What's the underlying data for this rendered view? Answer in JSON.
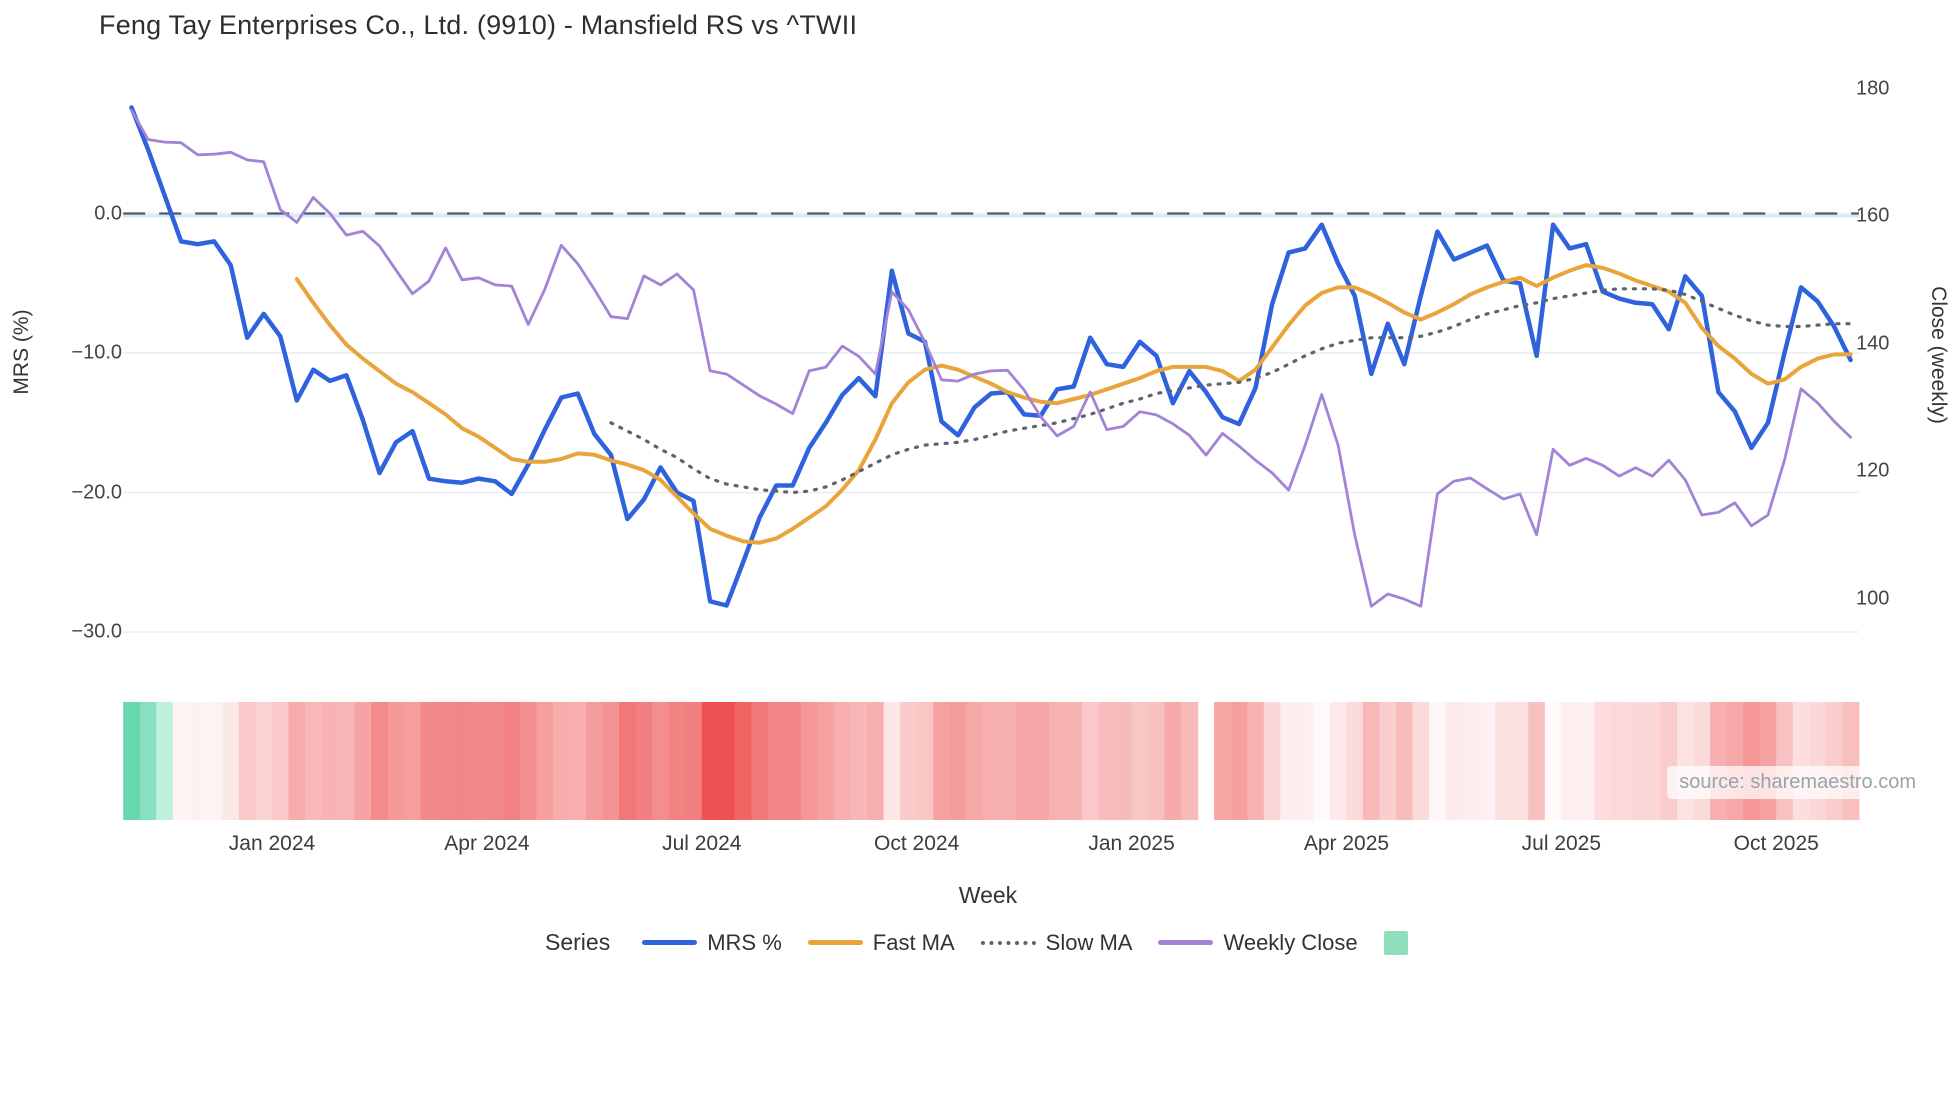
{
  "title": "Feng Tay Enterprises Co., Ltd. (9910) - Mansfield RS vs ^TWII",
  "source_note": "source: sharemaestro.com",
  "axes": {
    "left": {
      "title": "MRS (%)",
      "ticks": [
        {
          "label": "0.0",
          "value": 0
        },
        {
          "label": "−10.0",
          "value": -10
        },
        {
          "label": "−20.0",
          "value": -20
        },
        {
          "label": "−30.0",
          "value": -30
        }
      ]
    },
    "right": {
      "title": "Close (weekly)",
      "ticks": [
        {
          "label": "180",
          "value": 180
        },
        {
          "label": "160",
          "value": 160
        },
        {
          "label": "140",
          "value": 140
        },
        {
          "label": "120",
          "value": 120
        },
        {
          "label": "100",
          "value": 100
        }
      ]
    },
    "x": {
      "title": "Week",
      "ticks": [
        {
          "label": "Jan 2024",
          "week": 8.5
        },
        {
          "label": "Apr 2024",
          "week": 21.5
        },
        {
          "label": "Jul 2024",
          "week": 34.5
        },
        {
          "label": "Oct 2024",
          "week": 47.5
        },
        {
          "label": "Jan 2025",
          "week": 60.5
        },
        {
          "label": "Apr 2025",
          "week": 73.5
        },
        {
          "label": "Jul 2025",
          "week": 86.5
        },
        {
          "label": "Oct 2025",
          "week": 99.5
        }
      ]
    }
  },
  "legend": {
    "title": "Series",
    "entries": [
      {
        "label": "MRS %",
        "style": "solid",
        "color": "#2e63dd"
      },
      {
        "label": "Fast MA",
        "style": "solid",
        "color": "#e9a43c"
      },
      {
        "label": "Slow MA",
        "style": "dotted",
        "color": "#5d6370"
      },
      {
        "label": "Weekly Close",
        "style": "solid",
        "color": "#a383d6"
      },
      {
        "label": "",
        "style": "square",
        "color": "#90dfbc"
      }
    ]
  },
  "colors": {
    "grid": "#e9edf3",
    "zero_band": "#d9e8f7",
    "zero_dash": "#4d5a6a",
    "heat_positive_full": "#4ed2a0",
    "heat_negative_full": "#ee5151",
    "background": "#ffffff"
  },
  "chart_data": {
    "type": "line",
    "x_unit": "week_index",
    "n_weeks": 105,
    "zero_line": {
      "value": 0,
      "style": "dashed"
    },
    "series": [
      {
        "name": "MRS %",
        "axis": "left",
        "color": "#2e63dd",
        "width": 4.5,
        "dash": "solid",
        "start": 0,
        "values": [
          7.6,
          4.6,
          1.3,
          -2.0,
          -2.2,
          -2.0,
          -3.7,
          -8.9,
          -7.2,
          -8.8,
          -13.4,
          -11.2,
          -12.0,
          -11.6,
          -14.8,
          -18.6,
          -16.4,
          -15.6,
          -19.0,
          -19.2,
          -19.3,
          -19.0,
          -19.2,
          -20.1,
          -18.0,
          -15.5,
          -13.2,
          -12.9,
          -15.8,
          -17.3,
          -21.9,
          -20.5,
          -18.2,
          -20.0,
          -20.6,
          -27.8,
          -28.1,
          -25.0,
          -21.8,
          -19.5,
          -19.5,
          -16.8,
          -15.0,
          -13.0,
          -11.8,
          -13.1,
          -4.1,
          -8.6,
          -9.2,
          -14.9,
          -15.9,
          -13.9,
          -12.9,
          -12.8,
          -14.4,
          -14.5,
          -12.6,
          -12.4,
          -8.9,
          -10.8,
          -11.0,
          -9.2,
          -10.2,
          -13.6,
          -11.3,
          -12.8,
          -14.6,
          -15.1,
          -12.5,
          -6.5,
          -2.8,
          -2.5,
          -0.8,
          -3.6,
          -5.9,
          -11.5,
          -7.9,
          -10.8,
          -5.9,
          -1.3,
          -3.3,
          -2.8,
          -2.3,
          -4.8,
          -5.0,
          -10.2,
          -0.8,
          -2.5,
          -2.2,
          -5.6,
          -6.1,
          -6.4,
          -6.5,
          -8.3,
          -4.5,
          -5.9,
          -12.8,
          -14.2,
          -16.8,
          -15.0,
          -10.0,
          -5.3,
          -6.3,
          -8.1,
          -10.5
        ]
      },
      {
        "name": "Fast MA",
        "axis": "left",
        "color": "#e9a43c",
        "width": 4,
        "dash": "solid",
        "start": 10,
        "values": [
          -4.7,
          -6.4,
          -8.0,
          -9.4,
          -10.4,
          -11.3,
          -12.2,
          -12.8,
          -13.6,
          -14.4,
          -15.4,
          -16.0,
          -16.8,
          -17.6,
          -17.8,
          -17.8,
          -17.6,
          -17.2,
          -17.3,
          -17.7,
          -18.0,
          -18.4,
          -19.1,
          -20.3,
          -21.5,
          -22.6,
          -23.1,
          -23.5,
          -23.6,
          -23.3,
          -22.6,
          -21.8,
          -21.0,
          -19.8,
          -18.4,
          -16.2,
          -13.6,
          -12.1,
          -11.2,
          -10.9,
          -11.2,
          -11.7,
          -12.2,
          -12.8,
          -13.2,
          -13.5,
          -13.6,
          -13.3,
          -13.0,
          -12.6,
          -12.2,
          -11.8,
          -11.3,
          -11.0,
          -11.0,
          -11.0,
          -11.3,
          -12.0,
          -11.2,
          -9.6,
          -8.0,
          -6.6,
          -5.7,
          -5.3,
          -5.3,
          -5.8,
          -6.4,
          -7.1,
          -7.6,
          -7.1,
          -6.5,
          -5.8,
          -5.3,
          -4.9,
          -4.6,
          -5.2,
          -4.6,
          -4.1,
          -3.7,
          -3.9,
          -4.3,
          -4.8,
          -5.2,
          -5.6,
          -6.4,
          -8.2,
          -9.5,
          -10.4,
          -11.5,
          -12.2,
          -11.9,
          -11.0,
          -10.4,
          -10.1,
          -10.1
        ]
      },
      {
        "name": "Slow MA",
        "axis": "left",
        "color": "#5d6370",
        "width": 3.2,
        "dash": "dotted",
        "start": 29,
        "values": [
          -15.0,
          -15.6,
          -16.2,
          -16.9,
          -17.5,
          -18.3,
          -19.0,
          -19.4,
          -19.6,
          -19.8,
          -19.9,
          -20.0,
          -19.9,
          -19.6,
          -19.1,
          -18.5,
          -17.9,
          -17.3,
          -16.9,
          -16.6,
          -16.5,
          -16.4,
          -16.2,
          -15.9,
          -15.6,
          -15.4,
          -15.2,
          -15.0,
          -14.7,
          -14.4,
          -14.0,
          -13.6,
          -13.3,
          -12.9,
          -12.7,
          -12.5,
          -12.3,
          -12.2,
          -12.1,
          -11.8,
          -11.4,
          -10.8,
          -10.2,
          -9.7,
          -9.3,
          -9.1,
          -8.9,
          -8.9,
          -8.9,
          -8.8,
          -8.5,
          -8.1,
          -7.6,
          -7.2,
          -6.9,
          -6.6,
          -6.4,
          -6.1,
          -5.9,
          -5.7,
          -5.5,
          -5.4,
          -5.4,
          -5.4,
          -5.5,
          -5.8,
          -6.3,
          -6.8,
          -7.3,
          -7.7,
          -8.0,
          -8.1,
          -8.1,
          -8.0,
          -7.9,
          -7.9
        ]
      },
      {
        "name": "Weekly Close",
        "axis": "right",
        "color": "#a383d6",
        "width": 2.8,
        "dash": "solid",
        "start": 0,
        "values": [
          176.6,
          172.0,
          171.6,
          171.5,
          169.6,
          169.7,
          170.0,
          168.8,
          168.5,
          161.0,
          159.0,
          162.9,
          160.4,
          157.0,
          157.6,
          155.3,
          151.5,
          147.8,
          149.8,
          155.0,
          150.0,
          150.3,
          149.2,
          149.0,
          143.0,
          148.5,
          155.4,
          152.5,
          148.5,
          144.2,
          143.9,
          150.6,
          149.2,
          150.9,
          148.4,
          135.7,
          135.2,
          133.5,
          131.8,
          130.5,
          129.0,
          135.7,
          136.3,
          139.6,
          138.0,
          135.2,
          148.1,
          145.3,
          140.2,
          134.3,
          134.1,
          135.2,
          135.7,
          135.8,
          132.7,
          128.5,
          125.5,
          127.0,
          132.4,
          126.5,
          127.0,
          129.3,
          128.8,
          127.4,
          125.6,
          122.5,
          125.9,
          123.9,
          121.7,
          119.7,
          117.0,
          124.0,
          132.0,
          124.0,
          110.0,
          98.8,
          100.7,
          99.9,
          98.8,
          116.4,
          118.4,
          118.9,
          117.2,
          115.6,
          116.4,
          110.0,
          123.4,
          120.9,
          122.0,
          120.9,
          119.2,
          120.5,
          119.2,
          121.7,
          118.6,
          113.1,
          113.5,
          115.0,
          111.4,
          113.1,
          121.7,
          132.9,
          130.7,
          127.8,
          125.3
        ]
      }
    ],
    "heatmap": {
      "values_from": "MRS %",
      "gap_index": 65,
      "scale": {
        "zero": "#ffffff",
        "positive_full": "#4ed2a0",
        "positive_max": 10,
        "negative_full": "#ee5151",
        "negative_max": 28
      }
    }
  }
}
